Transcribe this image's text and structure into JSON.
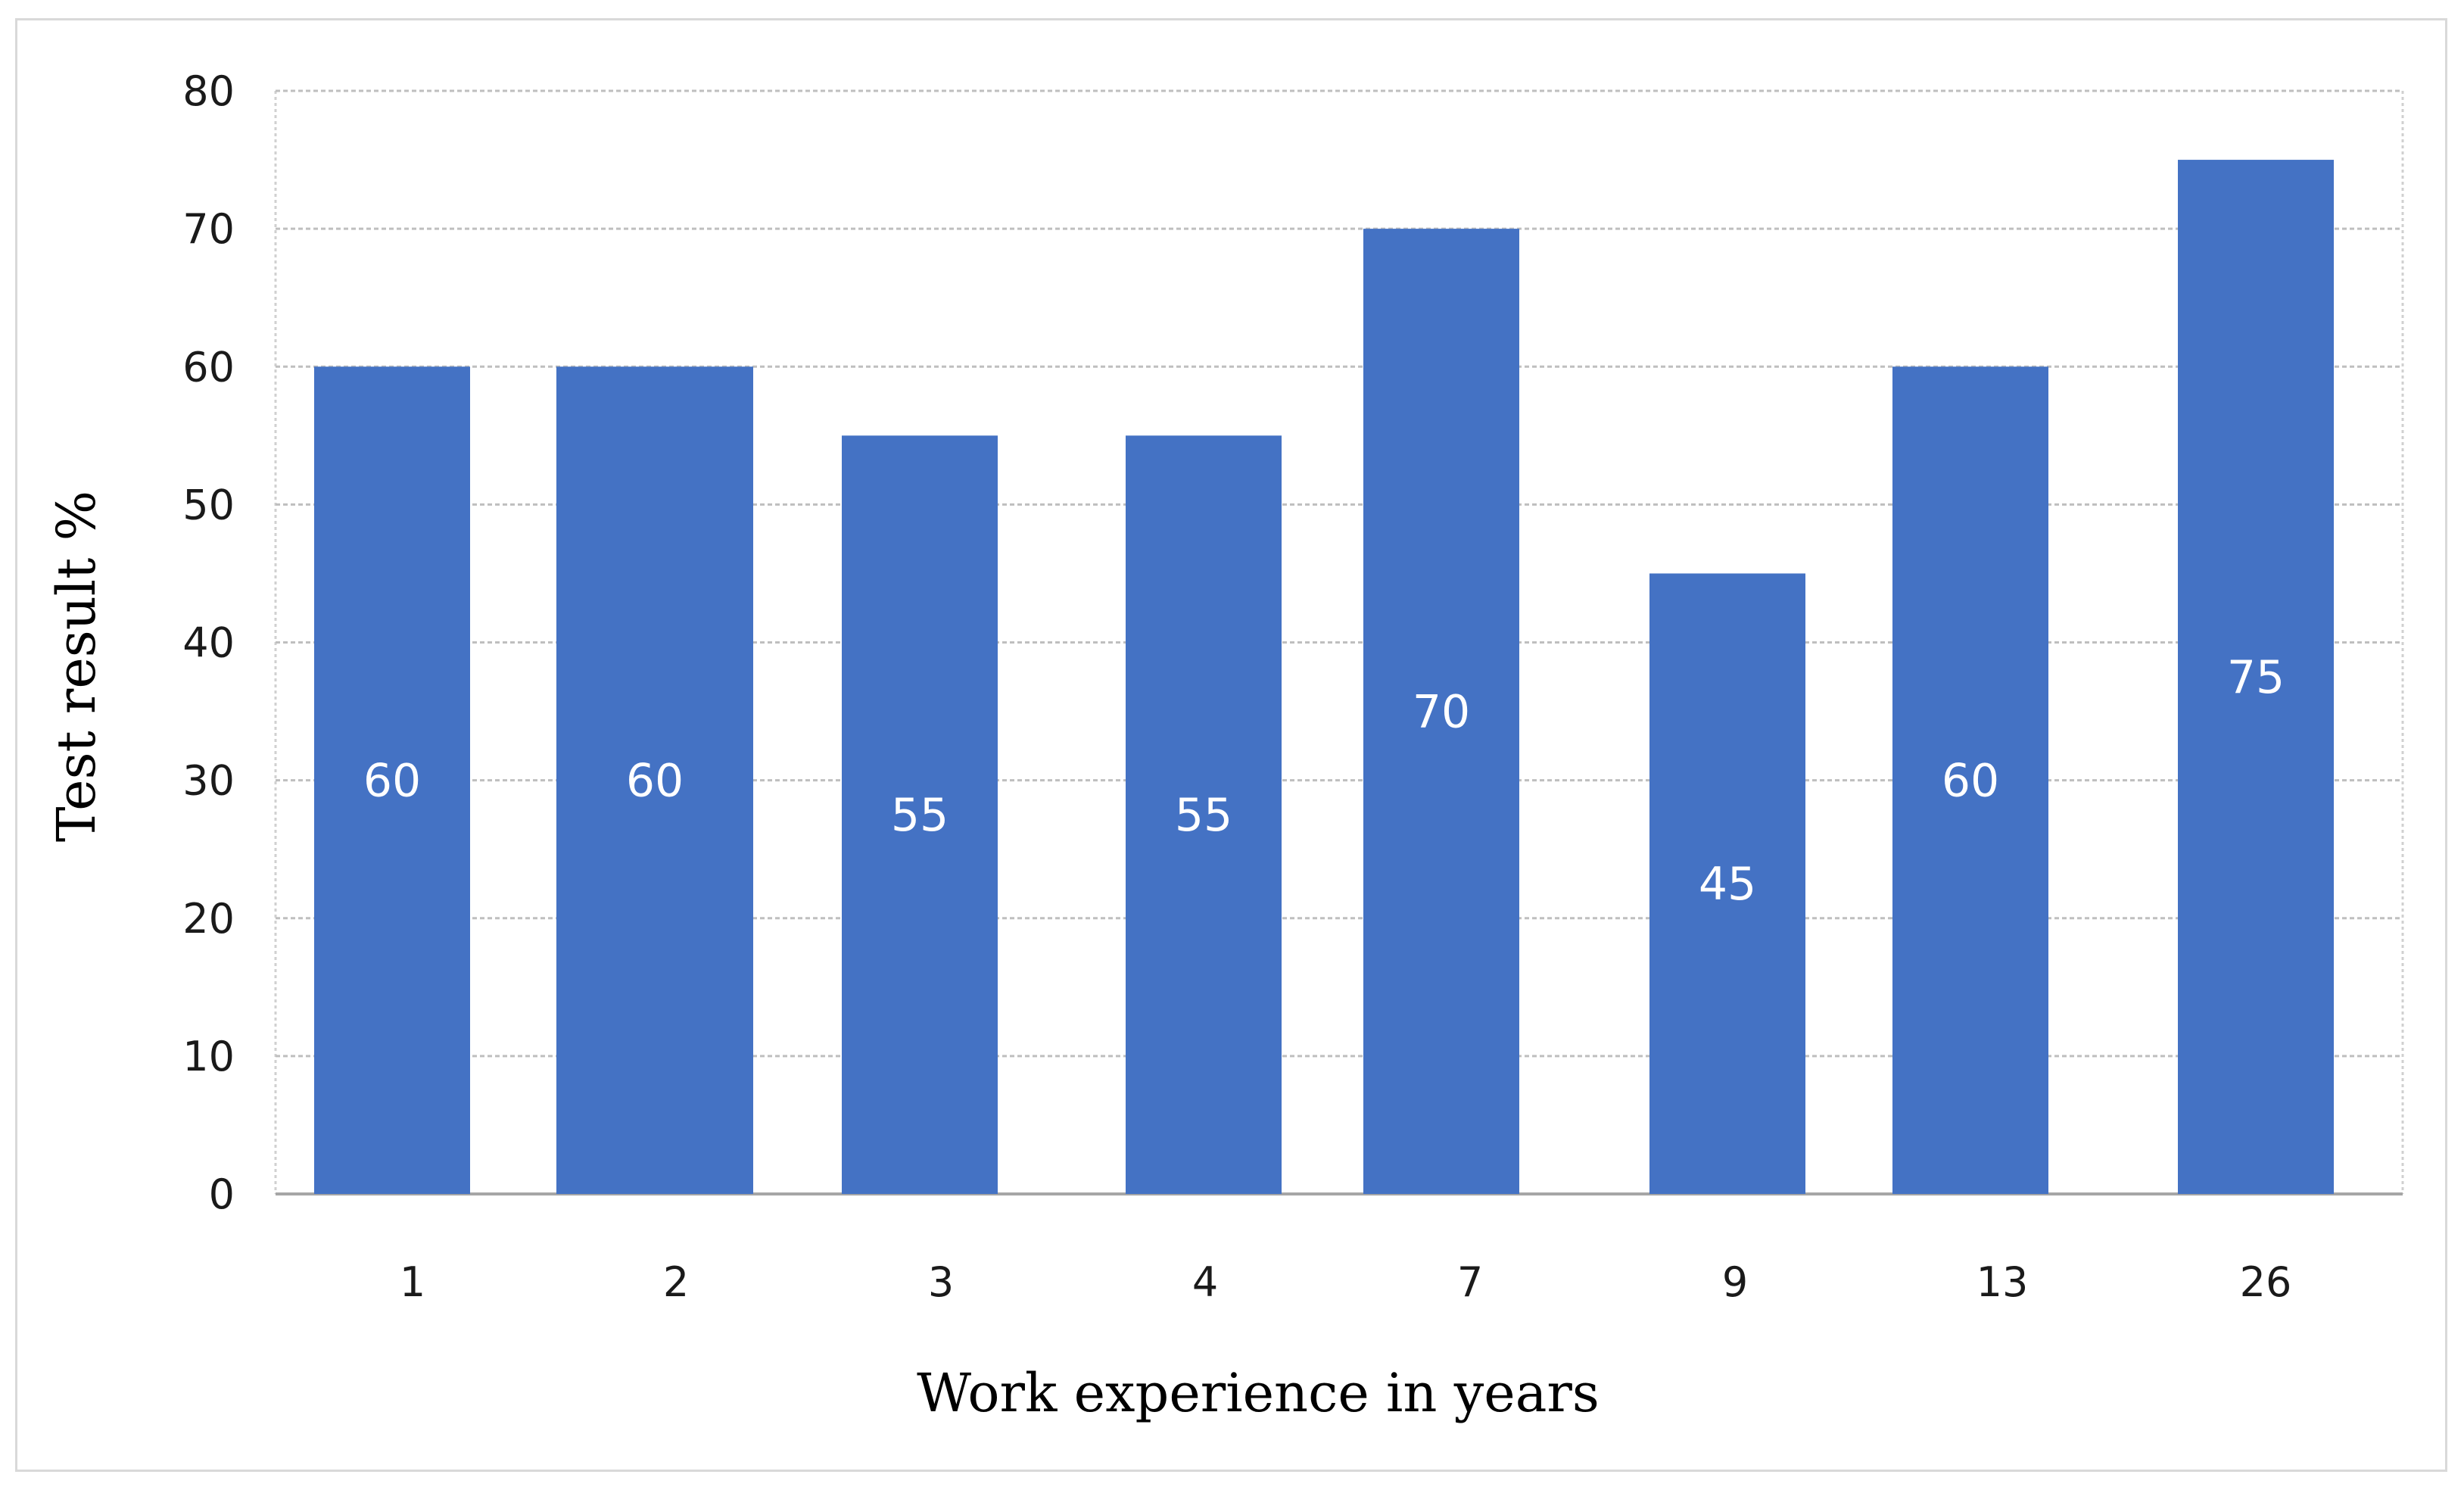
{
  "chart_data": {
    "type": "bar",
    "categories": [
      "1",
      "2",
      "3",
      "4",
      "7",
      "9",
      "13",
      "26"
    ],
    "values": [
      60,
      60,
      55,
      55,
      70,
      45,
      60,
      75
    ],
    "data_labels": [
      "60",
      "60",
      "55",
      "55",
      "70",
      "45",
      "60",
      "75"
    ],
    "yticks": [
      "0",
      "10",
      "20",
      "30",
      "40",
      "50",
      "60",
      "70",
      "80"
    ],
    "ylim": [
      0,
      80
    ],
    "xlabel": "Work experience in years",
    "ylabel": "Test result %",
    "bar_color": "#4472c4",
    "grid": true,
    "grid_color": "#bfbfbf",
    "legend": "none"
  }
}
